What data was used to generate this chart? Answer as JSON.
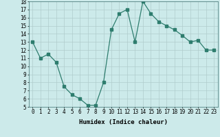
{
  "x": [
    0,
    1,
    2,
    3,
    4,
    5,
    6,
    7,
    8,
    9,
    10,
    11,
    12,
    13,
    14,
    15,
    16,
    17,
    18,
    19,
    20,
    21,
    22,
    23
  ],
  "y": [
    13,
    11,
    11.5,
    10.5,
    7.5,
    6.5,
    6,
    5.2,
    5.2,
    8,
    14.5,
    16.5,
    17,
    13,
    18,
    16.5,
    15.5,
    15,
    14.5,
    13.8,
    13,
    13.2,
    12,
    12
  ],
  "title": "",
  "xlabel": "Humidex (Indice chaleur)",
  "ylabel": "",
  "xlim": [
    -0.5,
    23.5
  ],
  "ylim": [
    5,
    18
  ],
  "yticks": [
    5,
    6,
    7,
    8,
    9,
    10,
    11,
    12,
    13,
    14,
    15,
    16,
    17,
    18
  ],
  "xticks": [
    0,
    1,
    2,
    3,
    4,
    5,
    6,
    7,
    8,
    9,
    10,
    11,
    12,
    13,
    14,
    15,
    16,
    17,
    18,
    19,
    20,
    21,
    22,
    23
  ],
  "line_color": "#2e7d6e",
  "bg_color": "#cceaea",
  "grid_color": "#b0cccc",
  "label_fontsize": 6.5,
  "tick_fontsize": 5.5
}
